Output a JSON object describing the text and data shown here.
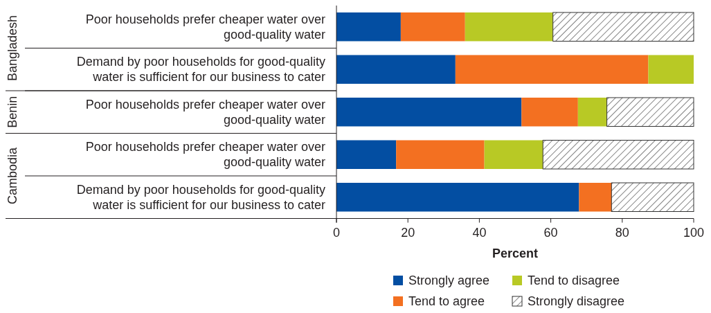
{
  "chart_data": {
    "type": "bar",
    "orientation": "horizontal",
    "stacked": true,
    "categories": [
      "Poor households prefer cheaper water over good-quality water",
      "Demand by poor households for good-quality water is sufficient for our business to cater",
      "Poor households prefer cheaper water over good-quality water",
      "Poor households prefer cheaper water over good-quality water",
      "Demand by poor households for good-quality water is sufficient for our business to cater"
    ],
    "series": [
      {
        "name": "Strongly agree",
        "color": "#034ea2",
        "values": [
          18,
          33.3,
          51.8,
          16.7,
          67.9
        ]
      },
      {
        "name": "Tend to agree",
        "color": "#f37021",
        "values": [
          18,
          54,
          15.8,
          24.7,
          9.1
        ]
      },
      {
        "name": "Tend to disagree",
        "color": "#b8c925",
        "values": [
          24.6,
          12.7,
          8.1,
          16.4,
          0
        ]
      },
      {
        "name": "Strongly disagree",
        "color": "#333333",
        "values": [
          39.4,
          0,
          24.3,
          42.2,
          23
        ]
      }
    ],
    "xlim": [
      0,
      100
    ],
    "xticks": [
      0,
      20,
      40,
      60,
      80,
      100
    ],
    "xlabel": "Percent",
    "annotations": [
      "Bangladesh",
      "Benin",
      "Cambodia"
    ],
    "legend": "bottom"
  }
}
